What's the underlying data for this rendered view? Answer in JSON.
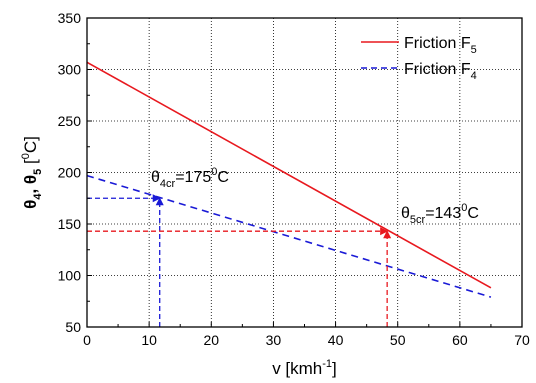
{
  "chart_data": {
    "type": "line",
    "x_axis": {
      "label_main": "v [kmh",
      "label_sup": "-1",
      "label_end": "]",
      "range": [
        0,
        70
      ],
      "ticks": [
        0,
        10,
        20,
        30,
        40,
        50,
        60,
        70
      ]
    },
    "y_axis": {
      "label_theta": "θ",
      "label_sub4": "4",
      "label_comma": ", ",
      "label_sub5": "5",
      "label_unit_open": " [",
      "label_unit_sup": "0",
      "label_unit_close": "C]",
      "range": [
        50,
        350
      ],
      "ticks": [
        50,
        100,
        150,
        200,
        250,
        300,
        350
      ]
    },
    "grid": true,
    "legend_position": "top-right",
    "series": [
      {
        "name": "Friction F5",
        "legend_main": "Friction F",
        "legend_sub": "5",
        "color": "#e8191f",
        "style": "solid",
        "x": [
          0,
          65
        ],
        "y": [
          307,
          88
        ]
      },
      {
        "name": "Friction F4",
        "legend_main": "Friction F",
        "legend_sub": "4",
        "color": "#1a1ad6",
        "style": "dashed",
        "x": [
          0,
          65
        ],
        "y": [
          197,
          79
        ]
      }
    ],
    "annotations": [
      {
        "theta": "θ",
        "sub": "4cr",
        "value": "=175",
        "sup": "0",
        "unit": "C",
        "x": 11.7,
        "y": 175,
        "color": "#1a1ad6"
      },
      {
        "theta": "θ",
        "sub": "5cr",
        "value": "=143",
        "sup": "0",
        "unit": "C",
        "x": 48.3,
        "y": 143,
        "color": "#e8191f"
      }
    ]
  }
}
